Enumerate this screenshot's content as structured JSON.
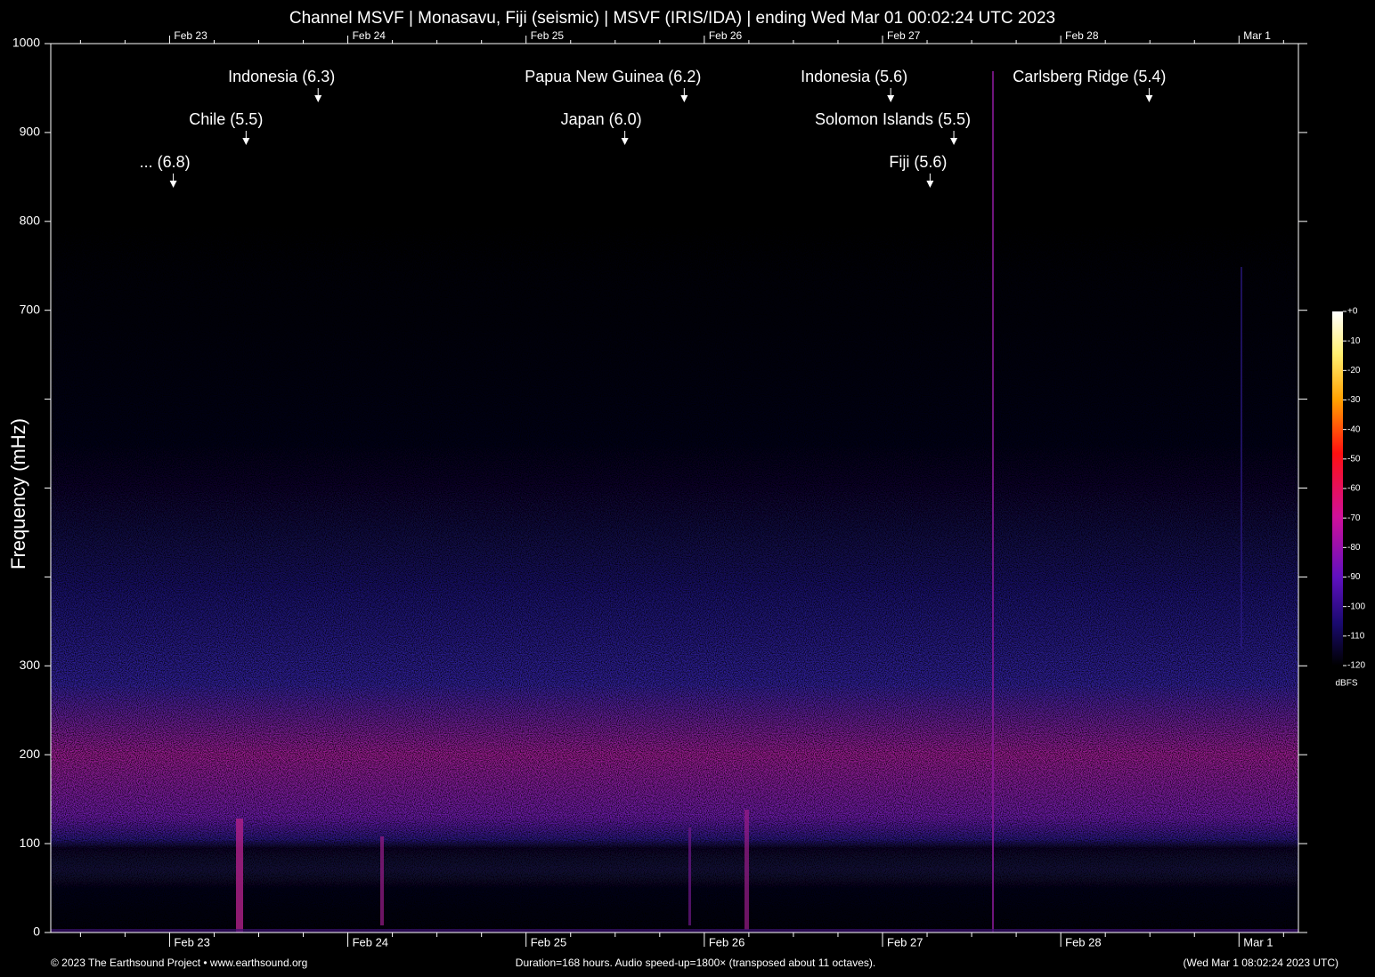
{
  "chart_data": {
    "type": "spectrogram",
    "title": "Channel MSVF | Monasavu, Fiji (seismic) | MSVF (IRIS/IDA) | ending Wed Mar 01 00:02:24 UTC 2023",
    "ylabel": "Frequency (mHz)",
    "ylim": [
      0,
      1000
    ],
    "yticks": [
      0,
      100,
      200,
      300,
      700,
      800,
      900,
      1000
    ],
    "yminor_ticks": [
      400,
      500,
      600
    ],
    "xlim": [
      0,
      168
    ],
    "xticks": [
      {
        "value": 16,
        "label": "Feb 23"
      },
      {
        "value": 40,
        "label": "Feb 24"
      },
      {
        "value": 64,
        "label": "Feb 25"
      },
      {
        "value": 88,
        "label": "Feb 26"
      },
      {
        "value": 112,
        "label": "Feb 27"
      },
      {
        "value": 136,
        "label": "Feb 28"
      },
      {
        "value": 160,
        "label": "Mar  1"
      }
    ],
    "xminor_ticks": [
      4,
      10,
      22,
      28,
      34,
      46,
      52,
      58,
      70,
      76,
      82,
      94,
      100,
      106,
      118,
      124,
      130,
      142,
      148,
      154,
      166
    ],
    "annotations": [
      {
        "text": "... (6.8)",
        "x": 16.5
      },
      {
        "text": "Chile (5.5)",
        "x": 26.3
      },
      {
        "text": "Indonesia (6.3)",
        "x": 36.0
      },
      {
        "text": "Japan (6.0)",
        "x": 77.3
      },
      {
        "text": "Papua New Guinea (6.2)",
        "x": 85.3
      },
      {
        "text": "Indonesia (5.6)",
        "x": 113.1
      },
      {
        "text": "Fiji (5.6)",
        "x": 118.4
      },
      {
        "text": "Solomon Islands (5.5)",
        "x": 121.6
      },
      {
        "text": "Carlsberg Ridge (5.4)",
        "x": 147.9
      }
    ],
    "colorbar": {
      "label": "dBFS",
      "lim": [
        -120,
        0
      ],
      "ticks": [
        {
          "value": 0,
          "label": "+0"
        },
        -10,
        -20,
        -30,
        -40,
        -50,
        -60,
        -70,
        -80,
        -90,
        -100,
        -110,
        -120
      ]
    },
    "footer_left": "© 2023 The Earthsound Project • www.earthsound.org",
    "footer_center": "Duration=168 hours. Audio speed-up=1800× (transposed about 11 octaves).",
    "footer_right": "(Wed Mar  1 08:02:24 2023 UTC)"
  }
}
